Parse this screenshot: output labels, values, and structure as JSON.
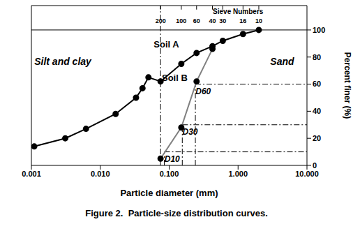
{
  "chart_data": {
    "type": "line",
    "title": "Figure 2.  Particle-size distribution curves.",
    "x_label": "Particle diameter (mm)",
    "y_label": "Percent finer (%)",
    "log": "x",
    "grid": false,
    "xlim": [
      0.001,
      10
    ],
    "xticks": [
      {
        "value": 0.001,
        "label": "0.001"
      },
      {
        "value": 0.01,
        "label": "0.010"
      },
      {
        "value": 0.1,
        "label": "0.100"
      },
      {
        "value": 1,
        "label": "1.000"
      },
      {
        "value": 10,
        "label": "10.000"
      }
    ],
    "ylim": [
      0,
      118
    ],
    "yticks": [
      0,
      20,
      40,
      60,
      80,
      100
    ],
    "series": [
      {
        "name": "Soil A",
        "color": "#000000",
        "marker": "circle",
        "x": [
          0.0011,
          0.0031,
          0.0062,
          0.0167,
          0.033,
          0.041,
          0.05,
          0.075,
          0.15,
          0.25,
          0.425,
          0.6,
          1.18,
          2.0
        ],
        "values": [
          14,
          20,
          27,
          38,
          50,
          57,
          65,
          62,
          75,
          83,
          88,
          92,
          97,
          100
        ]
      },
      {
        "name": "Soil B",
        "color": "#808080",
        "marker": "circle",
        "x": [
          0.075,
          0.15,
          0.25,
          0.425
        ],
        "values": [
          5,
          28,
          62,
          86
        ]
      }
    ],
    "top_axis": {
      "title": "Sieve Numbers",
      "ticks": [
        {
          "value": 0.075,
          "label": "200"
        },
        {
          "value": 0.15,
          "label": "100"
        },
        {
          "value": 0.25,
          "label": "60"
        },
        {
          "value": 0.425,
          "label": "40"
        },
        {
          "value": 0.6,
          "label": "30"
        },
        {
          "value": 1.18,
          "label": "16"
        },
        {
          "value": 2.0,
          "label": "10"
        }
      ]
    },
    "boundary_x": 0.075,
    "d_values": [
      {
        "label": "D60",
        "x": 0.24,
        "y": 60
      },
      {
        "label": "D30",
        "x": 0.155,
        "y": 30
      },
      {
        "label": "D10",
        "x": 0.085,
        "y": 10
      }
    ],
    "annotations": [
      "Silt and clay",
      "Sand"
    ]
  }
}
